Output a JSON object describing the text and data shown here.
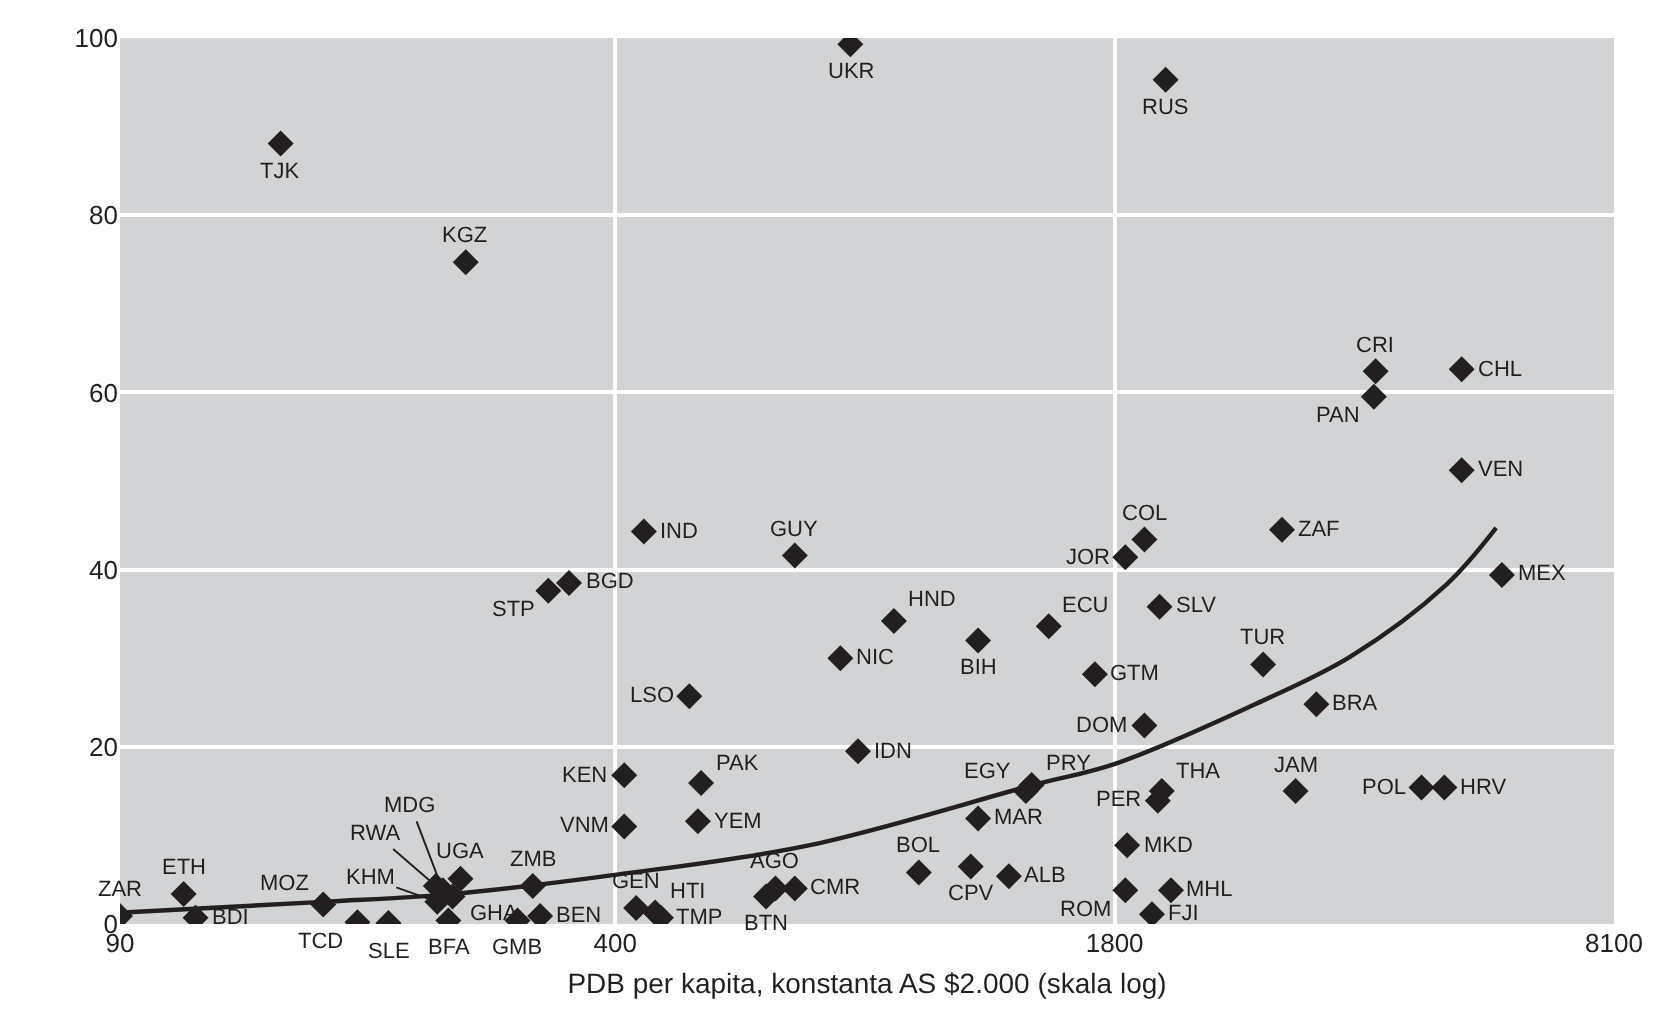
{
  "chart_data": {
    "type": "scatter",
    "xlabel": "PDB per kapita, konstanta AS $2.000 (skala log)",
    "log": "x",
    "xlim": [
      90,
      8100
    ],
    "xticks": [
      90,
      400,
      1800,
      8100
    ],
    "ylim": [
      0,
      100
    ],
    "yticks": [
      0,
      20,
      40,
      60,
      80,
      100
    ],
    "grid": true,
    "marker": "diamond",
    "series": [
      {
        "color": "#231f20",
        "x": [
          90,
          109,
          113,
          166,
          184,
          202,
          233,
          234,
          238,
          245,
          251,
          242,
          312,
          298,
          319,
          426,
          451,
          459,
          648,
          630,
          687,
          436,
          327,
          348,
          500,
          411,
          411,
          518,
          513,
          687,
          812,
          2099,
          788,
          926,
          831,
          1193,
          1476,
          998,
          1167,
          1309,
          1378,
          1402,
          1193,
          1696,
          1969,
          1859,
          1969,
          2061,
          2980,
          2815,
          3305,
          2075,
          2050,
          1869,
          1859,
          2133,
          2014,
          3104,
          4536,
          4860,
          3951,
          3930,
          5120,
          5120,
          5780,
          255,
          146
        ],
        "values": [
          0.9,
          3.4,
          0.7,
          2.2,
          0.2,
          0.1,
          4.3,
          2.5,
          3.8,
          3.1,
          5.1,
          0.4,
          4.3,
          0.4,
          0.9,
          1.8,
          1.3,
          0.7,
          4.0,
          3.1,
          4.0,
          44.3,
          37.6,
          38.5,
          25.7,
          16.8,
          11.0,
          15.9,
          11.6,
          41.6,
          99.3,
          95.3,
          30.0,
          34.2,
          19.5,
          32.0,
          33.6,
          5.8,
          6.5,
          5.4,
          15.0,
          15.7,
          11.9,
          28.2,
          22.4,
          41.4,
          43.4,
          35.8,
          44.5,
          29.3,
          24.8,
          15.0,
          13.9,
          8.9,
          3.8,
          3.8,
          1.1,
          15.0,
          15.4,
          15.4,
          62.4,
          59.5,
          62.6,
          51.2,
          39.4,
          74.7,
          88.1
        ]
      },
      {
        "type": "line",
        "marker": "none",
        "color": "#231f20",
        "x": [
          91,
          166,
          245,
          404,
          719,
          1410,
          1806,
          2748,
          3666,
          4889,
          5679
        ],
        "values": [
          1.3,
          2.5,
          3.4,
          5.6,
          8.9,
          15.7,
          18.1,
          24.8,
          30.2,
          38.3,
          44.7
        ]
      }
    ],
    "annotations": [
      {
        "text": "ZAR",
        "x": 90,
        "y": 0.9
      },
      {
        "text": "ETH",
        "x": 109,
        "y": 3.4
      },
      {
        "text": "BDI",
        "x": 113,
        "y": 0.7
      },
      {
        "text": "MOZ",
        "x": 166,
        "y": 2.2
      },
      {
        "text": "TCD",
        "x": 184,
        "y": 0.2
      },
      {
        "text": "SLE",
        "x": 202,
        "y": 0.1
      },
      {
        "text": "RWA",
        "x": 233,
        "y": 4.3
      },
      {
        "text": "KHM",
        "x": 234,
        "y": 2.5
      },
      {
        "text": "MDG",
        "x": 238,
        "y": 3.8
      },
      {
        "text": "GHA",
        "x": 245,
        "y": 3.1
      },
      {
        "text": "UGA",
        "x": 251,
        "y": 5.1
      },
      {
        "text": "BFA",
        "x": 242,
        "y": 0.4
      },
      {
        "text": "ZMB",
        "x": 312,
        "y": 4.3
      },
      {
        "text": "GMB",
        "x": 298,
        "y": 0.4
      },
      {
        "text": "BEN",
        "x": 319,
        "y": 0.9
      },
      {
        "text": "GEN",
        "x": 426,
        "y": 1.8
      },
      {
        "text": "HTI",
        "x": 451,
        "y": 1.3
      },
      {
        "text": "TMP",
        "x": 459,
        "y": 0.7
      },
      {
        "text": "AGO",
        "x": 648,
        "y": 4.0
      },
      {
        "text": "BTN",
        "x": 630,
        "y": 3.1
      },
      {
        "text": "CMR",
        "x": 687,
        "y": 4.0
      },
      {
        "text": "IND",
        "x": 436,
        "y": 44.3
      },
      {
        "text": "STP",
        "x": 327,
        "y": 37.6
      },
      {
        "text": "BGD",
        "x": 348,
        "y": 38.5
      },
      {
        "text": "LSO",
        "x": 500,
        "y": 25.7
      },
      {
        "text": "KEN",
        "x": 411,
        "y": 16.8
      },
      {
        "text": "VNM",
        "x": 411,
        "y": 11.0
      },
      {
        "text": "PAK",
        "x": 518,
        "y": 15.9
      },
      {
        "text": "YEM",
        "x": 513,
        "y": 11.6
      },
      {
        "text": "GUY",
        "x": 687,
        "y": 41.6
      },
      {
        "text": "UKR",
        "x": 812,
        "y": 99.3
      },
      {
        "text": "RUS",
        "x": 2099,
        "y": 95.3
      },
      {
        "text": "NIC",
        "x": 788,
        "y": 30.0
      },
      {
        "text": "HND",
        "x": 926,
        "y": 34.2
      },
      {
        "text": "IDN",
        "x": 831,
        "y": 19.5
      },
      {
        "text": "BIH",
        "x": 1193,
        "y": 32.0
      },
      {
        "text": "ECU",
        "x": 1476,
        "y": 33.6
      },
      {
        "text": "BOL",
        "x": 998,
        "y": 5.8
      },
      {
        "text": "CPV",
        "x": 1167,
        "y": 6.5
      },
      {
        "text": "ALB",
        "x": 1309,
        "y": 5.4
      },
      {
        "text": "EGY",
        "x": 1378,
        "y": 15.0
      },
      {
        "text": "PRY",
        "x": 1402,
        "y": 15.7
      },
      {
        "text": "MAR",
        "x": 1193,
        "y": 11.9
      },
      {
        "text": "GTM",
        "x": 1696,
        "y": 28.2
      },
      {
        "text": "DOM",
        "x": 1969,
        "y": 22.4
      },
      {
        "text": "JOR",
        "x": 1859,
        "y": 41.4
      },
      {
        "text": "COL",
        "x": 1969,
        "y": 43.4
      },
      {
        "text": "SLV",
        "x": 2061,
        "y": 35.8
      },
      {
        "text": "ZAF",
        "x": 2980,
        "y": 44.5
      },
      {
        "text": "TUR",
        "x": 2815,
        "y": 29.3
      },
      {
        "text": "BRA",
        "x": 3305,
        "y": 24.8
      },
      {
        "text": "THA",
        "x": 2075,
        "y": 15.0
      },
      {
        "text": "PER",
        "x": 2050,
        "y": 13.9
      },
      {
        "text": "MKD",
        "x": 1869,
        "y": 8.9
      },
      {
        "text": "ROM",
        "x": 1859,
        "y": 3.8
      },
      {
        "text": "MHL",
        "x": 2133,
        "y": 3.8
      },
      {
        "text": "FJI",
        "x": 2014,
        "y": 1.1
      },
      {
        "text": "JAM",
        "x": 3104,
        "y": 15.0
      },
      {
        "text": "POL",
        "x": 4536,
        "y": 15.4
      },
      {
        "text": "HRV",
        "x": 4860,
        "y": 15.4
      },
      {
        "text": "CRI",
        "x": 3951,
        "y": 62.4
      },
      {
        "text": "PAN",
        "x": 3930,
        "y": 59.5
      },
      {
        "text": "CHL",
        "x": 5120,
        "y": 62.6
      },
      {
        "text": "VEN",
        "x": 5120,
        "y": 51.2
      },
      {
        "text": "MEX",
        "x": 5780,
        "y": 39.4
      },
      {
        "text": "KGZ",
        "x": 255,
        "y": 74.7
      },
      {
        "text": "TJK",
        "x": 146,
        "y": 88.1
      }
    ]
  }
}
